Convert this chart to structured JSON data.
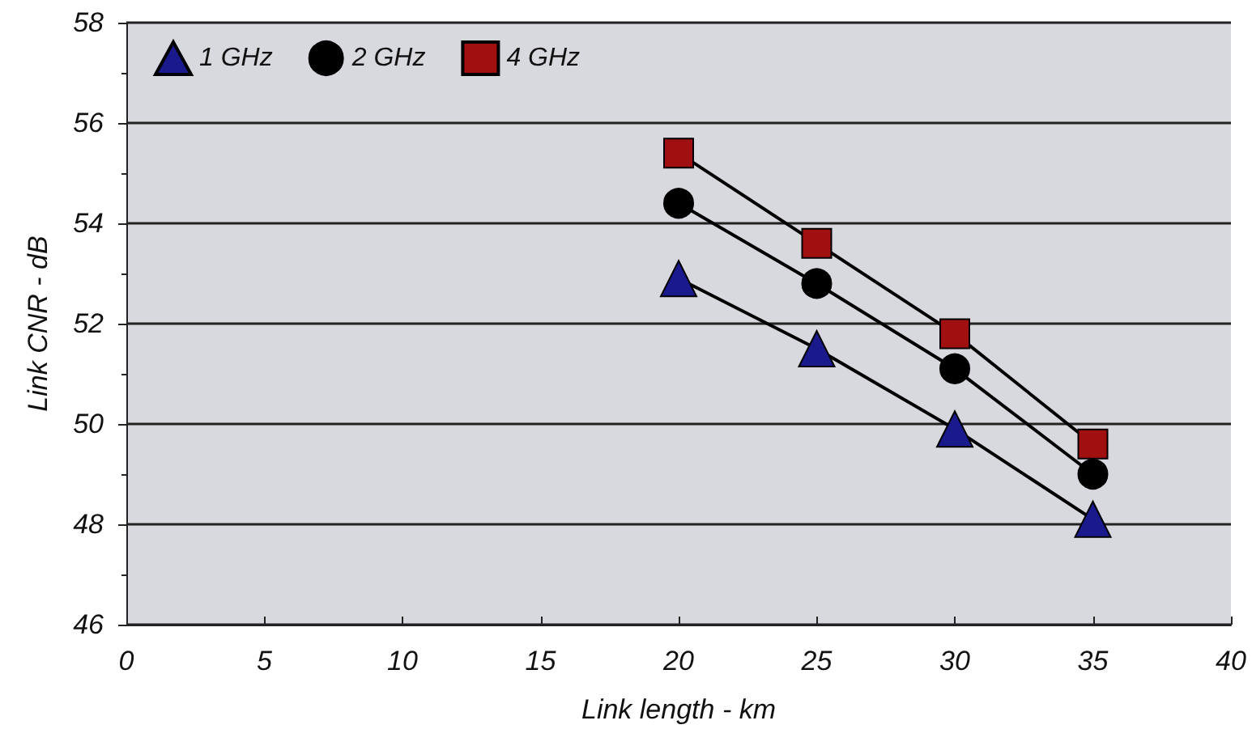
{
  "chart_data": {
    "type": "line",
    "xlabel": "Link length - km",
    "ylabel": "Link CNR - dB",
    "xlim": [
      0,
      40
    ],
    "xticks": [
      0,
      5,
      10,
      15,
      20,
      25,
      30,
      35,
      40
    ],
    "ylim": [
      46,
      58
    ],
    "yticks": [
      46,
      48,
      50,
      52,
      54,
      56,
      58
    ],
    "grid": "y",
    "legend": "top left",
    "series": [
      {
        "name": "1 GHz",
        "color": "#1a1a8c",
        "marker": "triangle",
        "x": [
          20,
          25,
          30,
          35
        ],
        "values": [
          52.9,
          51.5,
          49.9,
          48.1
        ]
      },
      {
        "name": "2 GHz",
        "color": "#000000",
        "marker": "circle",
        "x": [
          20,
          25,
          30,
          35
        ],
        "values": [
          54.4,
          52.8,
          51.1,
          49.0
        ]
      },
      {
        "name": "4 GHz",
        "color": "#a01010",
        "marker": "square",
        "x": [
          20,
          25,
          30,
          35
        ],
        "values": [
          55.4,
          53.6,
          51.8,
          49.6
        ]
      }
    ]
  }
}
